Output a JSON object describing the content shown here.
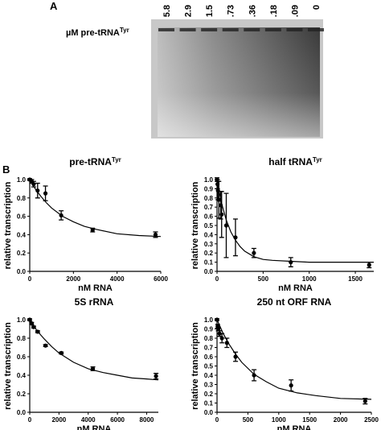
{
  "panel_a": {
    "label": "A",
    "gel_label": "µM pre-tRNA",
    "gel_label_sup": "Tyr",
    "lanes": [
      "5.8",
      "2.9",
      "1.5",
      ".73",
      ".36",
      ".18",
      ".09",
      "0"
    ]
  },
  "panel_b": {
    "label": "B"
  },
  "chart_data": [
    {
      "type": "scatter",
      "title": "pre-tRNA",
      "title_sup": "Tyr",
      "x_label": "nM RNA",
      "y_label": "relative transcription",
      "x": [
        0,
        90,
        180,
        360,
        720,
        1440,
        2880,
        5760
      ],
      "values": [
        1.0,
        0.98,
        0.95,
        0.88,
        0.85,
        0.61,
        0.45,
        0.4
      ],
      "errors": [
        0.01,
        0.02,
        0.03,
        0.08,
        0.08,
        0.05,
        0.02,
        0.03
      ],
      "fit": {
        "x": [
          0,
          250,
          500,
          750,
          1000,
          1500,
          2000,
          2500,
          3000,
          4000,
          5000,
          6000
        ],
        "values": [
          1.0,
          0.9,
          0.82,
          0.75,
          0.69,
          0.6,
          0.54,
          0.49,
          0.46,
          0.41,
          0.39,
          0.38
        ]
      },
      "xlim": [
        0,
        6000
      ],
      "xticks": [
        0,
        2000,
        4000,
        6000
      ],
      "ylim": [
        0,
        1.0
      ],
      "yticks": [
        {
          "value": 0,
          "label": "0.0"
        },
        0.2,
        0.4,
        0.6,
        0.8,
        {
          "value": 1,
          "label": "1.0"
        }
      ],
      "color": "#000000"
    },
    {
      "type": "scatter",
      "title": "half tRNA",
      "title_sup": "Tyr",
      "x_label": "nM RNA",
      "y_label": "relative transcription",
      "x": [
        0,
        5,
        10,
        20,
        40,
        50,
        100,
        200,
        400,
        800,
        1650
      ],
      "values": [
        1.0,
        0.95,
        0.88,
        0.78,
        0.72,
        0.62,
        0.5,
        0.37,
        0.2,
        0.1,
        0.07
      ],
      "errors": [
        0.02,
        0.05,
        0.1,
        0.2,
        0.15,
        0.25,
        0.35,
        0.2,
        0.05,
        0.05,
        0.03
      ],
      "fit": {
        "x": [
          0,
          25,
          50,
          75,
          100,
          150,
          200,
          250,
          300,
          400,
          500,
          600,
          800,
          1000,
          1300,
          1700
        ],
        "values": [
          1.0,
          0.86,
          0.74,
          0.65,
          0.56,
          0.43,
          0.34,
          0.27,
          0.22,
          0.16,
          0.13,
          0.12,
          0.11,
          0.1,
          0.1,
          0.1
        ]
      },
      "xlim": [
        0,
        1700
      ],
      "xticks": [
        0,
        500,
        1000,
        1500
      ],
      "ylim": [
        0,
        1.0
      ],
      "yticks": [
        {
          "value": 0,
          "label": "0.0"
        },
        0.1,
        0.2,
        0.3,
        0.4,
        0.5,
        0.6,
        0.7,
        0.8,
        0.9,
        {
          "value": 1,
          "label": "1.0"
        }
      ],
      "color": "#000000"
    },
    {
      "type": "scatter",
      "title": "5S rRNA",
      "x_label": "nM RNA",
      "y_label": "relative transcription",
      "x": [
        0,
        130,
        270,
        540,
        1080,
        2160,
        4320,
        8640
      ],
      "values": [
        1.0,
        0.96,
        0.92,
        0.87,
        0.72,
        0.64,
        0.47,
        0.39
      ],
      "errors": [
        0.01,
        0.01,
        0.01,
        0.01,
        0.01,
        0.01,
        0.02,
        0.03
      ],
      "fit": {
        "x": [
          0,
          500,
          1000,
          1500,
          2000,
          3000,
          4000,
          5000,
          6000,
          7000,
          8000,
          8800
        ],
        "values": [
          1.0,
          0.88,
          0.79,
          0.71,
          0.64,
          0.54,
          0.47,
          0.43,
          0.4,
          0.37,
          0.36,
          0.35
        ]
      },
      "xlim": [
        0,
        8800
      ],
      "xticks": [
        0,
        2000,
        4000,
        6000,
        8000
      ],
      "ylim": [
        0,
        1.0
      ],
      "yticks": [
        {
          "value": 0,
          "label": "0.0"
        },
        0.2,
        0.4,
        0.6,
        0.8,
        {
          "value": 1,
          "label": "1.0"
        }
      ],
      "color": "#000000"
    },
    {
      "type": "scatter",
      "title": "250 nt ORF RNA",
      "x_label": "nM RNA",
      "y_label": "relative transcription",
      "x": [
        0,
        10,
        20,
        40,
        80,
        160,
        300,
        600,
        1200,
        2400
      ],
      "values": [
        1.0,
        0.93,
        0.9,
        0.85,
        0.8,
        0.75,
        0.6,
        0.4,
        0.29,
        0.12
      ],
      "errors": [
        0.01,
        0.02,
        0.02,
        0.03,
        0.05,
        0.05,
        0.05,
        0.06,
        0.06,
        0.03
      ],
      "fit": {
        "x": [
          0,
          100,
          200,
          300,
          400,
          600,
          800,
          1000,
          1300,
          1600,
          2000,
          2500
        ],
        "values": [
          1.0,
          0.85,
          0.73,
          0.63,
          0.54,
          0.41,
          0.33,
          0.26,
          0.21,
          0.18,
          0.15,
          0.14
        ]
      },
      "xlim": [
        0,
        2500
      ],
      "xticks": [
        0,
        500,
        1000,
        1500,
        2000,
        2500
      ],
      "ylim": [
        0,
        1.0
      ],
      "yticks": [
        {
          "value": 0,
          "label": "0.0"
        },
        0.1,
        0.2,
        0.3,
        0.4,
        0.5,
        0.6,
        0.7,
        0.8,
        0.9,
        {
          "value": 1,
          "label": "1.0"
        }
      ],
      "color": "#000000"
    }
  ]
}
